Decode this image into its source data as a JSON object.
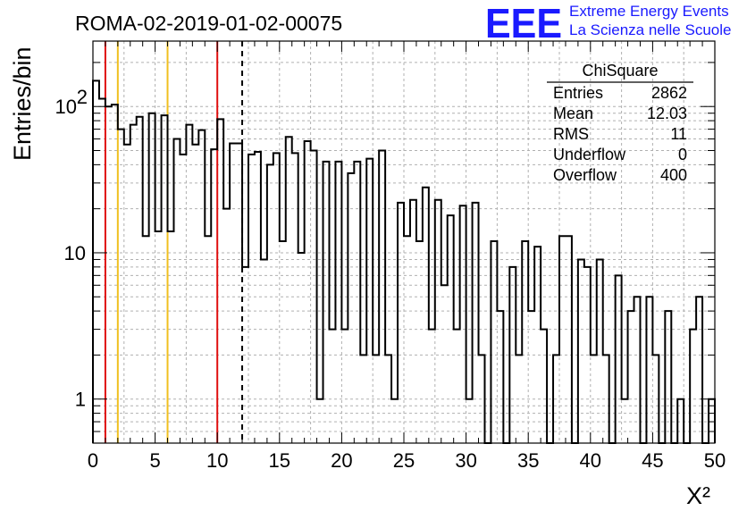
{
  "header": {
    "run_title": "ROMA-02-2019-01-02-00075",
    "logo_mark": "EEE",
    "logo_line1": "Extreme Energy Events",
    "logo_line2": "La Scienza nelle Scuole"
  },
  "stats_box": {
    "title": "ChiSquare",
    "rows": [
      {
        "label": "Entries",
        "value": "2862"
      },
      {
        "label": "Mean",
        "value": "12.03"
      },
      {
        "label": "RMS",
        "value": "11"
      },
      {
        "label": "Underflow",
        "value": "0"
      },
      {
        "label": "Overflow",
        "value": "400"
      }
    ]
  },
  "colors": {
    "histogram": "#000000",
    "red_line": "#e01010",
    "yellow_line": "#f0c020",
    "dashed_line": "#000000",
    "grid": "#b0b0b0",
    "logo": "#1a1aff"
  },
  "chart_data": {
    "type": "histogram",
    "title": "ROMA-02-2019-01-02-00075",
    "xlabel": "Χ²",
    "ylabel": "Entries/bin",
    "xlim": [
      0,
      50
    ],
    "ylim": [
      0.5,
      280
    ],
    "yscale": "log",
    "grid": true,
    "bin_width": 0.5,
    "x_ticks": [
      "0",
      "5",
      "10",
      "15",
      "20",
      "25",
      "30",
      "35",
      "40",
      "45",
      "50"
    ],
    "y_ticks": [
      {
        "value": 1,
        "label": "1"
      },
      {
        "value": 10,
        "label": "10"
      },
      {
        "value": 100,
        "label": "10",
        "exponent": "2"
      }
    ],
    "bin_values": [
      150,
      113,
      100,
      103,
      70,
      55,
      75,
      85,
      13,
      90,
      14,
      87,
      14,
      60,
      47,
      75,
      55,
      69,
      13,
      51,
      82,
      20,
      56,
      56,
      8,
      47,
      49,
      9,
      40,
      48,
      12,
      62,
      48,
      10,
      58,
      50,
      1,
      42,
      3,
      42,
      3,
      35,
      42,
      2,
      44,
      2,
      50,
      2,
      1,
      22,
      13,
      23,
      12,
      28,
      3,
      23,
      6,
      18,
      3,
      21,
      1,
      22,
      2,
      0.3,
      12,
      4,
      0.3,
      8,
      2,
      12,
      4,
      11,
      3,
      0.3,
      2,
      13,
      13,
      0.3,
      9,
      8,
      2,
      9,
      2,
      0.3,
      7,
      1,
      4,
      5,
      0.3,
      5,
      2,
      0.3,
      4,
      0.3,
      1,
      0.3,
      3,
      5,
      0.3,
      1
    ],
    "vertical_lines": [
      {
        "x": 1,
        "color": "#e01010",
        "style": "solid"
      },
      {
        "x": 2,
        "color": "#f0c020",
        "style": "solid"
      },
      {
        "x": 6,
        "color": "#f0c020",
        "style": "solid"
      },
      {
        "x": 10,
        "color": "#e01010",
        "style": "solid"
      },
      {
        "x": 12,
        "color": "#000000",
        "style": "dashed"
      }
    ]
  }
}
